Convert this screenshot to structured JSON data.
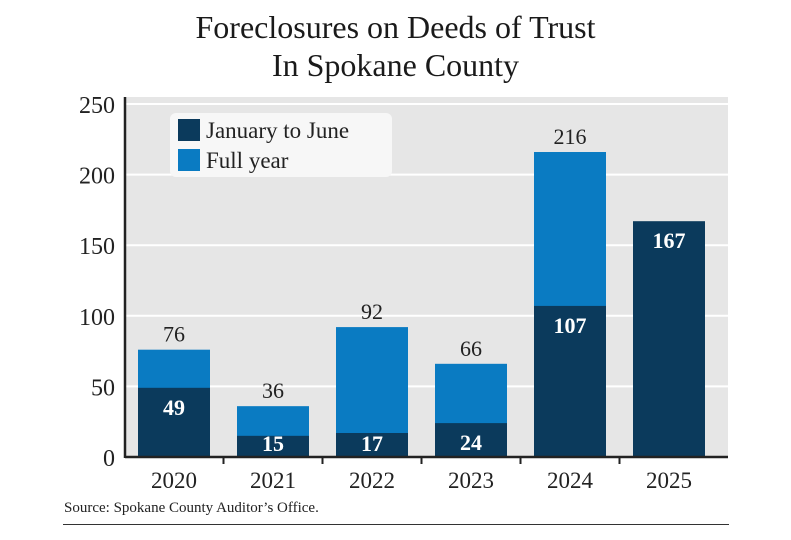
{
  "chart_data": {
    "type": "bar",
    "stacked": "overlay",
    "title": "Foreclosures on Deeds of Trust In Spokane County",
    "title_lines": [
      "Foreclosures on Deeds of Trust",
      "In Spokane County"
    ],
    "categories": [
      "2020",
      "2021",
      "2022",
      "2023",
      "2024",
      "2025"
    ],
    "series": [
      {
        "name": "January to June",
        "color": "#0b3a5c",
        "values": [
          49,
          15,
          17,
          24,
          107,
          167
        ]
      },
      {
        "name": "Full year",
        "color": "#0a7bc2",
        "values": [
          76,
          36,
          92,
          66,
          216,
          null
        ]
      }
    ],
    "yticks": [
      "0",
      "50",
      "100",
      "150",
      "200",
      "250"
    ],
    "ylim": [
      0,
      250
    ],
    "xlabel": "",
    "ylabel": "",
    "grid": true,
    "legend": "top-left",
    "background": "#e6e6e6",
    "source": "Source: Spokane County Auditor’s Office."
  }
}
